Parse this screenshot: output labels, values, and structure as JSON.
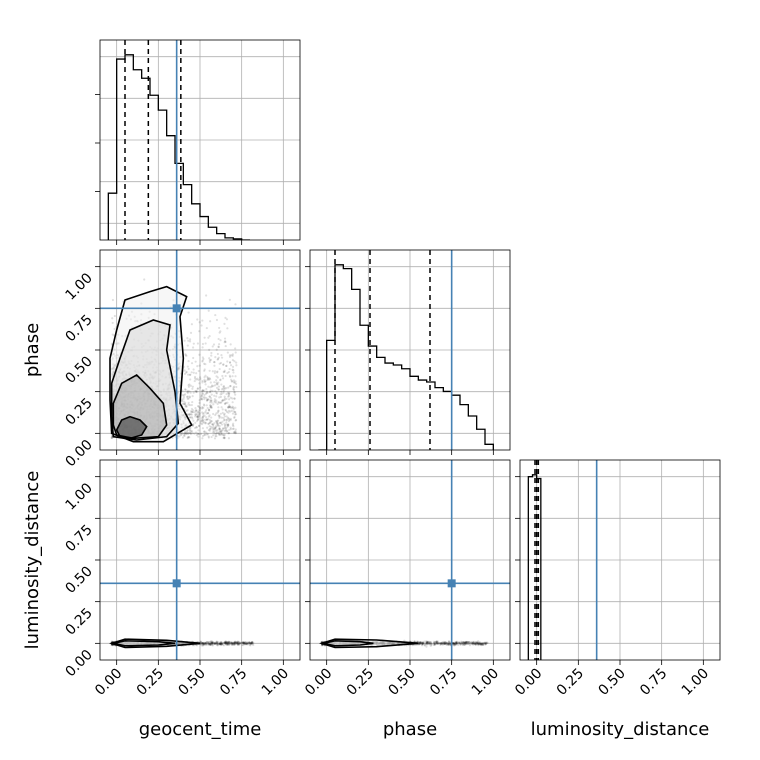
{
  "chart_data": {
    "type": "corner",
    "parameters": [
      "geocent_time",
      "phase",
      "luminosity_distance"
    ],
    "truths": {
      "geocent_time": 0.36,
      "phase": 0.75,
      "luminosity_distance": 0.36
    },
    "axis_range": [
      -0.1,
      1.1
    ],
    "ticks": [
      0.0,
      0.25,
      0.5,
      0.75,
      1.0
    ],
    "tick_labels": [
      "0.00",
      "0.25",
      "0.50",
      "0.75",
      "1.00"
    ],
    "grid": true,
    "colors": {
      "truth": "#4682b4",
      "line": "#000000",
      "grid": "#b0b0b0"
    },
    "histograms": {
      "geocent_time": {
        "bin_edges": [
          -0.05,
          0.0,
          0.05,
          0.1,
          0.15,
          0.2,
          0.25,
          0.3,
          0.35,
          0.4,
          0.45,
          0.5,
          0.55,
          0.6,
          0.65,
          0.7,
          0.75,
          0.8
        ],
        "counts": [
          0.22,
          0.85,
          0.87,
          0.8,
          0.76,
          0.68,
          0.61,
          0.49,
          0.36,
          0.26,
          0.17,
          0.11,
          0.06,
          0.03,
          0.01,
          0.005,
          0.0
        ],
        "quantiles": [
          0.05,
          0.19,
          0.385
        ]
      },
      "phase": {
        "bin_edges": [
          -0.05,
          0.0,
          0.05,
          0.1,
          0.15,
          0.2,
          0.25,
          0.3,
          0.35,
          0.4,
          0.45,
          0.5,
          0.55,
          0.6,
          0.65,
          0.7,
          0.75,
          0.8,
          0.85,
          0.9,
          0.95,
          1.0
        ],
        "counts": [
          0.0,
          0.58,
          0.98,
          0.96,
          0.85,
          0.66,
          0.55,
          0.49,
          0.46,
          0.45,
          0.43,
          0.39,
          0.37,
          0.36,
          0.33,
          0.31,
          0.29,
          0.24,
          0.18,
          0.11,
          0.03
        ],
        "quantiles": [
          0.05,
          0.26,
          0.62
        ]
      },
      "luminosity_distance": {
        "bin_edges": [
          -0.05,
          -0.025,
          0.0,
          0.025
        ],
        "counts": [
          0.98,
          0.99,
          0.97
        ],
        "quantiles": [
          -0.01,
          0.0,
          0.01
        ]
      }
    },
    "contours_2d": {
      "phase_vs_geocent_time": {
        "x": "geocent_time",
        "y": "phase",
        "levels": [
          [
            [
              0.0,
              0.02
            ],
            [
              0.02,
              -0.02
            ],
            [
              0.08,
              -0.03
            ],
            [
              0.15,
              -0.01
            ],
            [
              0.18,
              0.04
            ],
            [
              0.14,
              0.08
            ],
            [
              0.08,
              0.1
            ],
            [
              0.03,
              0.08
            ]
          ],
          [
            [
              -0.02,
              0.05
            ],
            [
              0.0,
              -0.01
            ],
            [
              0.1,
              -0.03
            ],
            [
              0.25,
              -0.02
            ],
            [
              0.3,
              0.05
            ],
            [
              0.28,
              0.18
            ],
            [
              0.2,
              0.27
            ],
            [
              0.12,
              0.35
            ],
            [
              0.03,
              0.3
            ],
            [
              -0.02,
              0.18
            ]
          ],
          [
            [
              -0.03,
              0.1
            ],
            [
              -0.02,
              -0.02
            ],
            [
              0.12,
              -0.04
            ],
            [
              0.3,
              -0.02
            ],
            [
              0.37,
              0.06
            ],
            [
              0.35,
              0.25
            ],
            [
              0.3,
              0.5
            ],
            [
              0.32,
              0.65
            ],
            [
              0.22,
              0.68
            ],
            [
              0.08,
              0.62
            ],
            [
              0.02,
              0.45
            ],
            [
              -0.03,
              0.3
            ]
          ],
          [
            [
              -0.04,
              0.2
            ],
            [
              -0.03,
              0.0
            ],
            [
              0.1,
              -0.05
            ],
            [
              0.28,
              -0.05
            ],
            [
              0.45,
              0.05
            ],
            [
              0.38,
              0.18
            ],
            [
              0.4,
              0.45
            ],
            [
              0.38,
              0.7
            ],
            [
              0.42,
              0.82
            ],
            [
              0.3,
              0.88
            ],
            [
              0.2,
              0.85
            ],
            [
              0.05,
              0.8
            ],
            [
              0.0,
              0.62
            ],
            [
              -0.04,
              0.45
            ]
          ]
        ]
      },
      "luminosity_distance_vs_geocent_time": {
        "x": "geocent_time",
        "y": "luminosity_distance",
        "levels": [
          [
            [
              -0.02,
              0.0
            ],
            [
              0.05,
              -0.015
            ],
            [
              0.25,
              -0.01
            ],
            [
              0.35,
              0.0
            ],
            [
              0.25,
              0.01
            ],
            [
              0.05,
              0.015
            ]
          ],
          [
            [
              -0.03,
              0.0
            ],
            [
              0.05,
              -0.025
            ],
            [
              0.3,
              -0.018
            ],
            [
              0.5,
              0.0
            ],
            [
              0.3,
              0.018
            ],
            [
              0.05,
              0.025
            ]
          ]
        ]
      },
      "luminosity_distance_vs_phase": {
        "x": "phase",
        "y": "luminosity_distance",
        "levels": [
          [
            [
              -0.02,
              0.0
            ],
            [
              0.05,
              -0.015
            ],
            [
              0.2,
              -0.01
            ],
            [
              0.28,
              0.0
            ],
            [
              0.2,
              0.01
            ],
            [
              0.05,
              0.015
            ]
          ],
          [
            [
              -0.03,
              0.0
            ],
            [
              0.05,
              -0.025
            ],
            [
              0.3,
              -0.02
            ],
            [
              0.55,
              0.0
            ],
            [
              0.3,
              0.02
            ],
            [
              0.05,
              0.025
            ]
          ]
        ]
      }
    }
  }
}
